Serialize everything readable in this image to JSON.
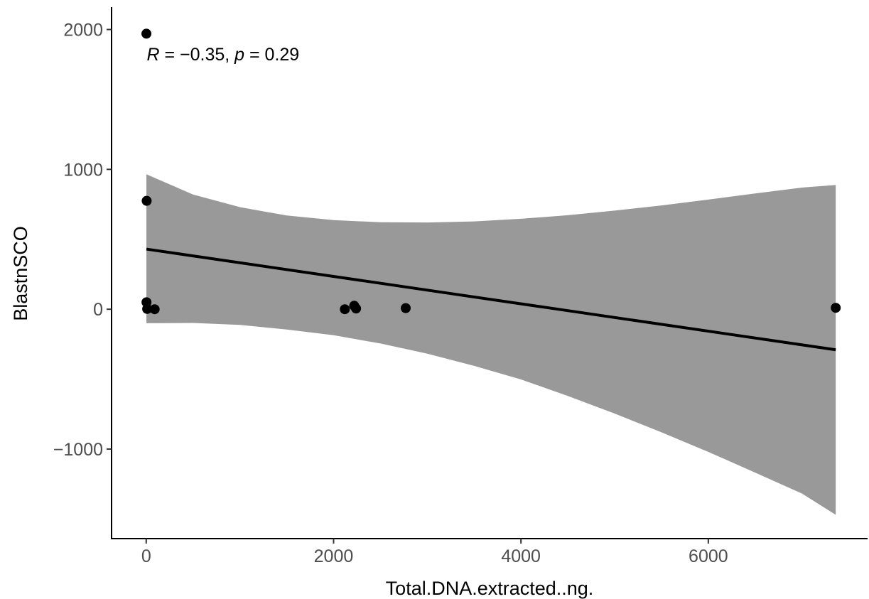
{
  "chart_data": {
    "type": "scatter",
    "xlabel": "Total.DNA.extracted..ng.",
    "ylabel": "BlastnSCO",
    "xlim": [
      -370,
      7700
    ],
    "ylim": [
      -1640,
      2150
    ],
    "x_ticks": [
      0,
      2000,
      4000,
      6000
    ],
    "x_tick_labels": [
      "0",
      "2000",
      "4000",
      "6000"
    ],
    "y_ticks": [
      -1000,
      0,
      1000,
      2000
    ],
    "y_tick_labels": [
      "−1000",
      "0",
      "1000",
      "2000"
    ],
    "grid": false,
    "points": [
      {
        "x": 2,
        "y": 1970
      },
      {
        "x": 5,
        "y": 775
      },
      {
        "x": 3,
        "y": 50
      },
      {
        "x": 10,
        "y": 2
      },
      {
        "x": 90,
        "y": 0
      },
      {
        "x": 2120,
        "y": 0
      },
      {
        "x": 2220,
        "y": 25
      },
      {
        "x": 2240,
        "y": 5
      },
      {
        "x": 2770,
        "y": 8
      },
      {
        "x": 7360,
        "y": 10
      }
    ],
    "regression": {
      "x": [
        2,
        7360
      ],
      "y": [
        430,
        -290
      ]
    },
    "confidence_band": {
      "x": [
        2,
        500,
        1000,
        1500,
        2000,
        2500,
        3000,
        3500,
        4000,
        4500,
        5000,
        5500,
        6000,
        6500,
        7000,
        7360
      ],
      "upper": [
        965,
        820,
        730,
        670,
        637,
        622,
        620,
        628,
        647,
        672,
        705,
        742,
        784,
        828,
        870,
        888
      ],
      "lower": [
        -100,
        -98,
        -112,
        -145,
        -186,
        -245,
        -318,
        -405,
        -502,
        -620,
        -746,
        -880,
        -1020,
        -1168,
        -1318,
        -1470
      ]
    },
    "annotation": {
      "x": 5,
      "y": 1850,
      "R": "−0.35",
      "p": "0.29"
    }
  }
}
